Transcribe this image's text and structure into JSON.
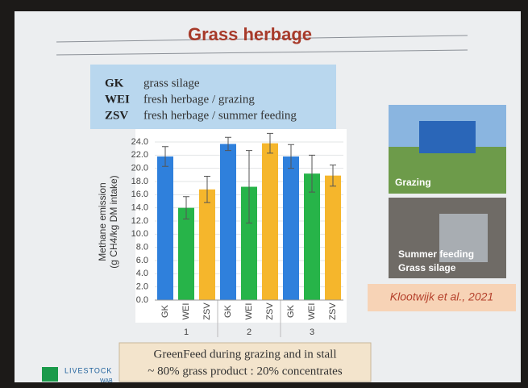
{
  "chart_data": {
    "type": "bar",
    "title": "Grass herbage",
    "y_label_lines": [
      "Methane emission",
      "(g CH4/kg DM intake)"
    ],
    "categories": [
      "1",
      "2",
      "3"
    ],
    "series": [
      {
        "name": "GK",
        "description": "grass silage",
        "color": "#2f80dc",
        "values": [
          21.8,
          23.7,
          21.8
        ],
        "errors": [
          1.5,
          1.0,
          1.8
        ]
      },
      {
        "name": "WEI",
        "description": "fresh herbage / grazing",
        "color": "#27b449",
        "values": [
          14.0,
          17.2,
          19.2
        ],
        "errors": [
          1.7,
          5.5,
          2.8
        ]
      },
      {
        "name": "ZSV",
        "description": "fresh herbage / summer feeding",
        "color": "#f5b62c",
        "values": [
          16.8,
          23.8,
          18.9
        ],
        "errors": [
          2.0,
          1.5,
          1.6
        ]
      }
    ],
    "ylim": [
      0,
      24
    ],
    "yticks": [
      {
        "value": 0,
        "label": "0.0"
      },
      {
        "value": 2,
        "label": "2.0"
      },
      {
        "value": 4,
        "label": "4.0"
      },
      {
        "value": 6,
        "label": "6.0"
      },
      {
        "value": 8,
        "label": "8.0"
      },
      {
        "value": 10,
        "label": "10.0"
      },
      {
        "value": 12,
        "label": "12.0"
      },
      {
        "value": 14,
        "label": "14.0"
      },
      {
        "value": 16,
        "label": "16.0"
      },
      {
        "value": 18,
        "label": "18.0"
      },
      {
        "value": 20,
        "label": "20.0"
      },
      {
        "value": 22,
        "label": "22.0"
      },
      {
        "value": 24,
        "label": "24.0"
      }
    ],
    "grid": true,
    "photo_captions": [
      "Grazing",
      "Summer feeding",
      "Grass silage"
    ],
    "citation": "Klootwijk et al., 2021",
    "note_lines": [
      "GreenFeed during grazing and in stall",
      "~ 80% grass product : 20% concentrates"
    ],
    "logo_texts": [
      "LIVESTOCK",
      "WAB"
    ]
  }
}
